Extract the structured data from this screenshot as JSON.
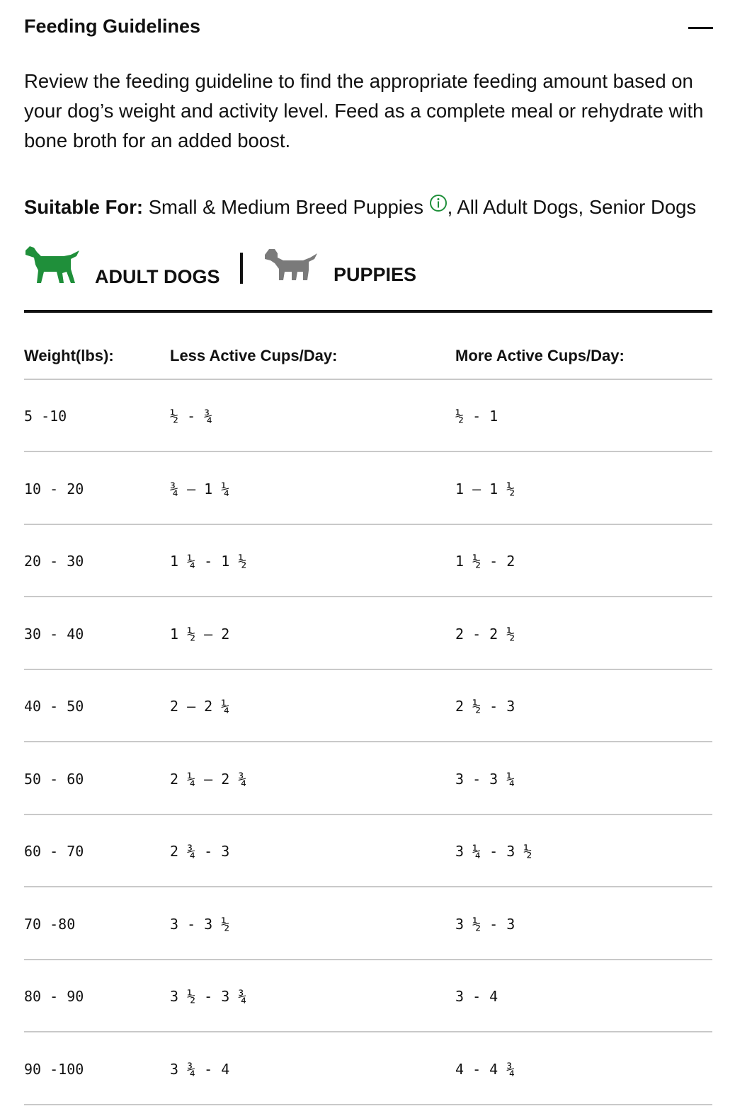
{
  "header": {
    "title": "Feeding Guidelines"
  },
  "description": "Review the feeding guideline to find the appropriate feeding amount based on your dog’s weight and activity level. Feed as a complete meal or rehydrate with bone broth for an added boost.",
  "suitable_for": {
    "label": "Suitable For:",
    "text_before_icon": "Small & Medium Breed Puppies",
    "text_after_icon": ", All Adult Dogs, Senior Dogs"
  },
  "tabs": [
    "ADULT DOGS",
    "PUPPIES"
  ],
  "table": {
    "columns": [
      "Weight(lbs):",
      "Less Active Cups/Day:",
      "More Active Cups/Day:"
    ],
    "rows": [
      [
        "5 -10",
        "½ - ¾",
        "½ - 1"
      ],
      [
        "10 - 20",
        "¾ – 1 ¼",
        "1 – 1 ½"
      ],
      [
        "20 - 30",
        "1 ¼ - 1 ½",
        "1 ½ - 2"
      ],
      [
        "30 - 40",
        "1 ½ – 2",
        "2 - 2 ½"
      ],
      [
        "40 - 50",
        "2 – 2 ¼",
        "2 ½ - 3"
      ],
      [
        "50 - 60",
        "2 ¼ – 2 ¾",
        "3 - 3 ¼"
      ],
      [
        "60 - 70",
        "2 ¾ - 3",
        "3 ¼ - 3 ½"
      ],
      [
        "70 -80",
        "3 - 3 ½",
        "3 ½ - 3"
      ],
      [
        "80 - 90",
        "3 ½ - 3 ¾",
        "3 - 4"
      ],
      [
        "90 -100",
        "3 ¾ - 4",
        "4 - 4 ¾"
      ]
    ]
  }
}
